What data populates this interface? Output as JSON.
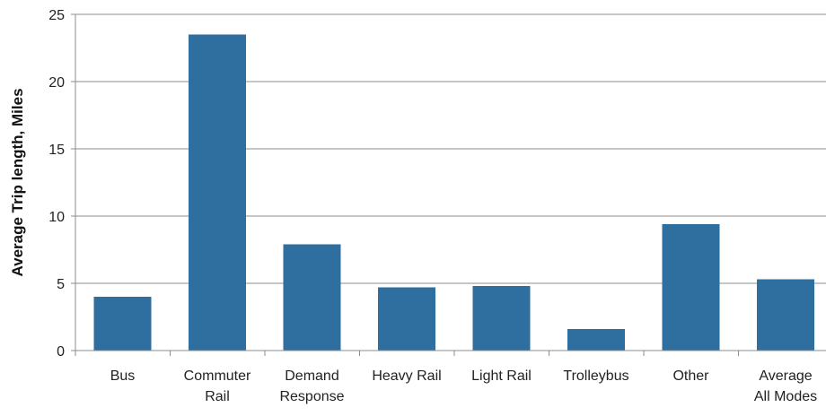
{
  "chart_data": {
    "type": "bar",
    "title": "",
    "xlabel": "",
    "ylabel": "Average Trip length, Miles",
    "ylim": [
      0,
      25
    ],
    "yticks": [
      0,
      5,
      10,
      15,
      20,
      25
    ],
    "grid": true,
    "legend": "none",
    "bar_color": "#2e6fa0",
    "categories": [
      [
        "Bus"
      ],
      [
        "Commuter",
        "Rail"
      ],
      [
        "Demand",
        "Response"
      ],
      [
        "Heavy Rail"
      ],
      [
        "Light Rail"
      ],
      [
        "Trolleybus"
      ],
      [
        "Other"
      ],
      [
        "Average",
        "All Modes"
      ]
    ],
    "values": [
      4.0,
      23.5,
      7.9,
      4.7,
      4.8,
      1.6,
      9.4,
      5.3
    ]
  }
}
